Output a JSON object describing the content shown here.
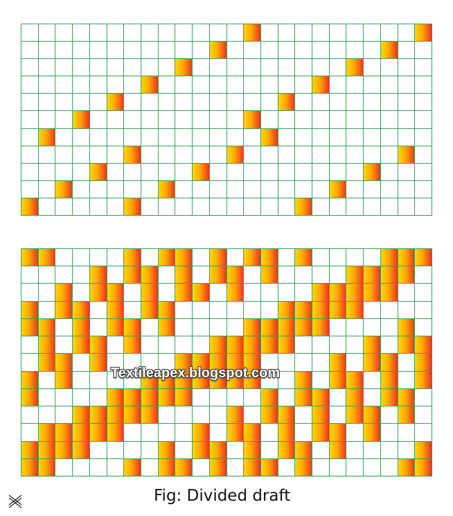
{
  "figure": {
    "caption": "Fig: Divided draft",
    "watermark": "Textileapex.blogspot.com",
    "corner_symbol": "double-cross-icon",
    "colors": {
      "grid_line": "#2f9a57",
      "fill_start": "#ffd800",
      "fill_end": "#e83a12",
      "background": "#ffffff"
    }
  },
  "top_draft": {
    "rows": 11,
    "columns": 24,
    "filled_columns_by_row": [
      [
        13,
        23
      ],
      [
        11,
        21
      ],
      [
        9,
        19
      ],
      [
        7,
        17
      ],
      [
        5,
        15
      ],
      [
        3,
        13
      ],
      [
        1,
        14
      ],
      [
        6,
        12,
        22
      ],
      [
        4,
        10,
        20
      ],
      [
        2,
        8,
        18
      ],
      [
        0,
        6,
        16
      ]
    ]
  },
  "bottom_draft": {
    "rows": 13,
    "columns": 24,
    "filled_columns_by_row": [
      [
        0,
        1,
        6,
        8,
        9,
        11,
        13,
        14,
        16,
        21,
        22,
        23
      ],
      [
        4,
        6,
        7,
        9,
        11,
        12,
        14,
        19,
        20,
        21,
        22
      ],
      [
        2,
        4,
        5,
        7,
        9,
        10,
        12,
        17,
        18,
        19,
        20,
        21
      ],
      [
        0,
        2,
        3,
        5,
        7,
        8,
        15,
        16,
        17,
        18,
        19
      ],
      [
        0,
        1,
        3,
        5,
        6,
        8,
        13,
        14,
        15,
        16,
        17,
        22
      ],
      [
        1,
        3,
        4,
        6,
        11,
        12,
        13,
        14,
        15,
        20,
        22,
        23
      ],
      [
        1,
        2,
        4,
        9,
        10,
        11,
        12,
        13,
        18,
        20,
        21,
        23
      ],
      [
        0,
        2,
        7,
        8,
        9,
        10,
        11,
        12,
        13,
        16,
        18,
        19,
        21,
        23
      ],
      [
        0,
        5,
        6,
        7,
        8,
        9,
        14,
        16,
        17,
        19,
        21,
        22
      ],
      [
        3,
        4,
        5,
        6,
        7,
        12,
        14,
        15,
        17,
        19,
        20,
        22
      ],
      [
        1,
        2,
        3,
        4,
        5,
        10,
        12,
        13,
        15,
        17,
        18,
        20
      ],
      [
        0,
        1,
        2,
        3,
        8,
        10,
        11,
        13,
        15,
        16,
        18,
        23
      ],
      [
        0,
        1,
        6,
        8,
        9,
        11,
        13,
        14,
        16,
        22,
        23
      ]
    ]
  }
}
